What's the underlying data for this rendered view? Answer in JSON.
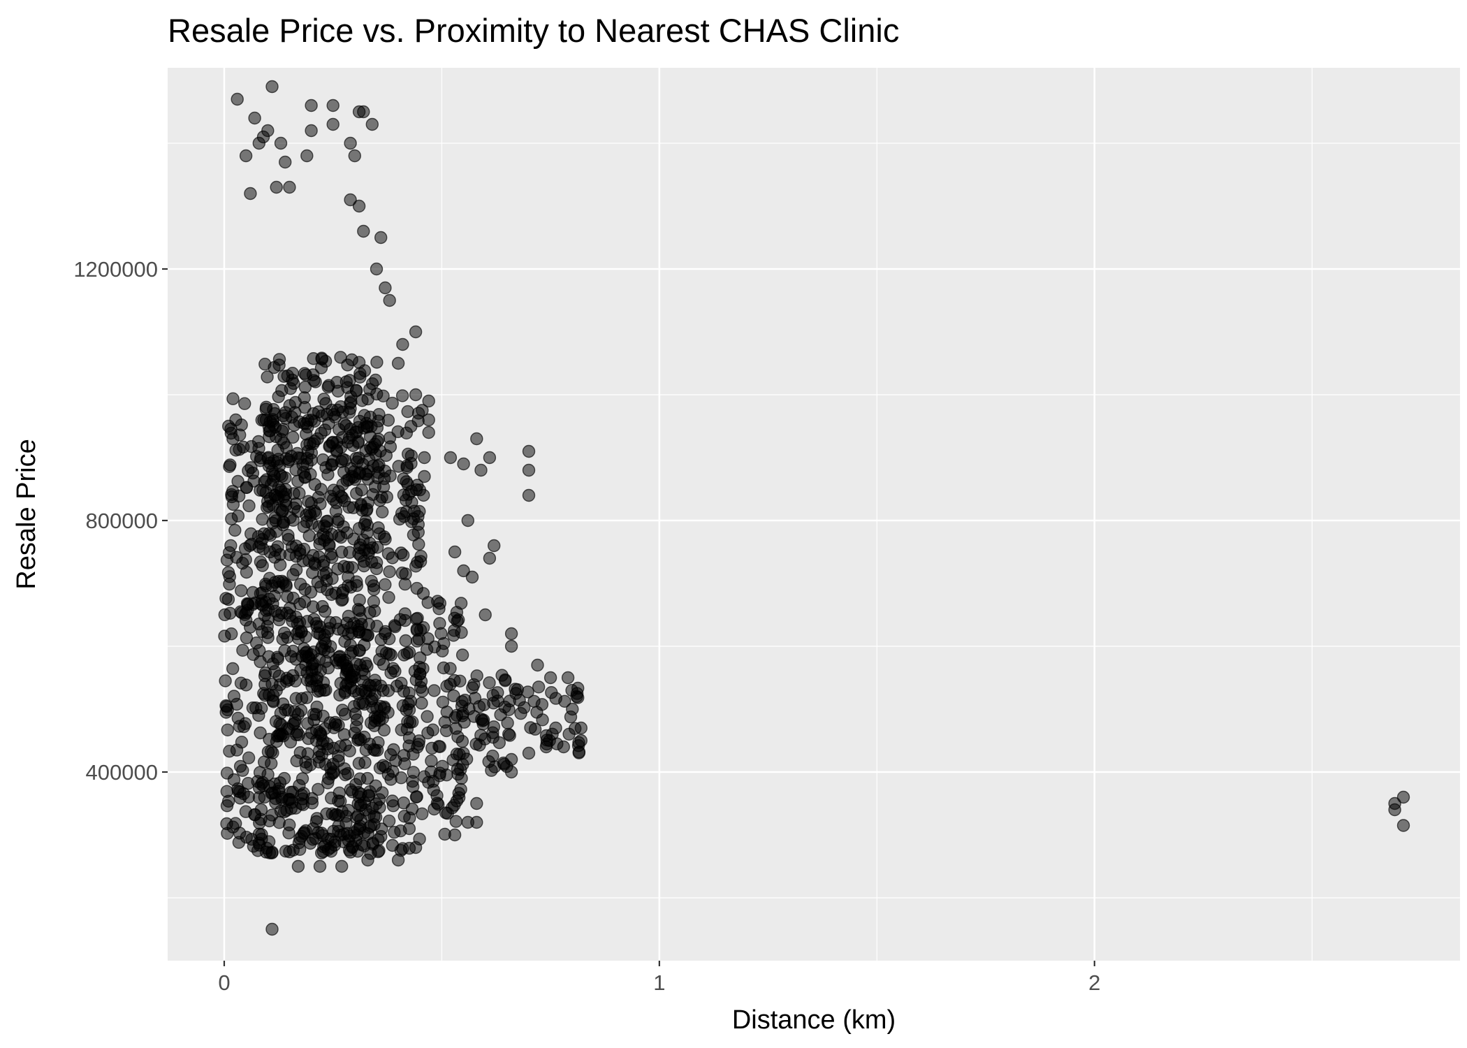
{
  "chart_data": {
    "type": "scatter",
    "title": "Resale Price vs. Proximity to Nearest CHAS Clinic",
    "xlabel": "Distance (km)",
    "ylabel": "Resale Price",
    "xlim": [
      -0.13,
      2.84
    ],
    "ylim": [
      100000,
      1520000
    ],
    "x_ticks": [
      0,
      1,
      2
    ],
    "x_tick_labels": [
      "0",
      "1",
      "2"
    ],
    "x_minor_ticks": [
      0.5,
      1.5,
      2.5
    ],
    "y_ticks": [
      400000,
      800000,
      1200000
    ],
    "y_tick_labels": [
      "400000",
      "800000",
      "1200000"
    ],
    "y_minor_ticks": [
      200000,
      600000,
      1000000,
      1400000
    ],
    "grid": true,
    "legend": "none",
    "point_color": "#000000",
    "point_alpha": 0.5,
    "panel_background": "#ebebeb",
    "grid_color": "#ffffff",
    "sampled_points": [
      [
        0.01,
        950000
      ],
      [
        0.02,
        930000
      ],
      [
        0.03,
        1470000
      ],
      [
        0.05,
        1380000
      ],
      [
        0.06,
        1320000
      ],
      [
        0.07,
        1440000
      ],
      [
        0.08,
        1400000
      ],
      [
        0.09,
        1410000
      ],
      [
        0.1,
        1420000
      ],
      [
        0.11,
        1490000
      ],
      [
        0.12,
        1330000
      ],
      [
        0.13,
        1400000
      ],
      [
        0.14,
        1370000
      ],
      [
        0.15,
        1330000
      ],
      [
        0.19,
        1380000
      ],
      [
        0.2,
        1420000
      ],
      [
        0.2,
        1460000
      ],
      [
        0.25,
        1460000
      ],
      [
        0.25,
        1430000
      ],
      [
        0.29,
        1400000
      ],
      [
        0.3,
        1380000
      ],
      [
        0.31,
        1450000
      ],
      [
        0.32,
        1450000
      ],
      [
        0.34,
        1430000
      ],
      [
        0.29,
        1310000
      ],
      [
        0.31,
        1300000
      ],
      [
        0.32,
        1260000
      ],
      [
        0.36,
        1250000
      ],
      [
        0.35,
        1200000
      ],
      [
        0.37,
        1170000
      ],
      [
        0.38,
        1150000
      ],
      [
        0.41,
        1080000
      ],
      [
        0.4,
        1050000
      ],
      [
        0.44,
        1100000
      ],
      [
        0.44,
        1000000
      ],
      [
        0.47,
        990000
      ],
      [
        0.47,
        960000
      ],
      [
        0.47,
        940000
      ],
      [
        0.46,
        900000
      ],
      [
        0.46,
        870000
      ],
      [
        0.52,
        900000
      ],
      [
        0.55,
        890000
      ],
      [
        0.58,
        930000
      ],
      [
        0.59,
        880000
      ],
      [
        0.61,
        900000
      ],
      [
        0.56,
        800000
      ],
      [
        0.61,
        740000
      ],
      [
        0.62,
        760000
      ],
      [
        0.7,
        910000
      ],
      [
        0.7,
        880000
      ],
      [
        0.7,
        840000
      ],
      [
        0.53,
        750000
      ],
      [
        0.55,
        720000
      ],
      [
        0.57,
        710000
      ],
      [
        0.6,
        650000
      ],
      [
        0.66,
        620000
      ],
      [
        0.66,
        600000
      ],
      [
        0.72,
        570000
      ],
      [
        0.75,
        550000
      ],
      [
        0.79,
        550000
      ],
      [
        0.81,
        520000
      ],
      [
        0.8,
        500000
      ],
      [
        0.82,
        470000
      ],
      [
        0.82,
        450000
      ],
      [
        0.78,
        440000
      ],
      [
        0.74,
        440000
      ],
      [
        0.7,
        430000
      ],
      [
        0.66,
        420000
      ],
      [
        0.66,
        400000
      ],
      [
        0.58,
        350000
      ],
      [
        0.56,
        320000
      ],
      [
        0.53,
        300000
      ],
      [
        0.58,
        320000
      ],
      [
        0.44,
        280000
      ],
      [
        0.4,
        260000
      ],
      [
        0.33,
        260000
      ],
      [
        0.27,
        250000
      ],
      [
        0.22,
        250000
      ],
      [
        0.17,
        250000
      ],
      [
        0.11,
        150000
      ],
      [
        2.69,
        350000
      ],
      [
        2.69,
        340000
      ],
      [
        2.71,
        360000
      ],
      [
        2.71,
        315000
      ]
    ],
    "dense_bands": [
      {
        "x_range": [
          0.0,
          0.46
        ],
        "y_range": [
          270000,
          1000000
        ]
      },
      {
        "x_range": [
          0.08,
          0.36
        ],
        "y_range": [
          270000,
          1060000
        ]
      },
      {
        "x_range": [
          0.44,
          0.55
        ],
        "y_range": [
          300000,
          680000
        ]
      },
      {
        "x_range": [
          0.55,
          0.65
        ],
        "y_range": [
          400000,
          560000
        ]
      },
      {
        "x_range": [
          0.65,
          0.82
        ],
        "y_range": [
          430000,
          540000
        ]
      }
    ]
  }
}
